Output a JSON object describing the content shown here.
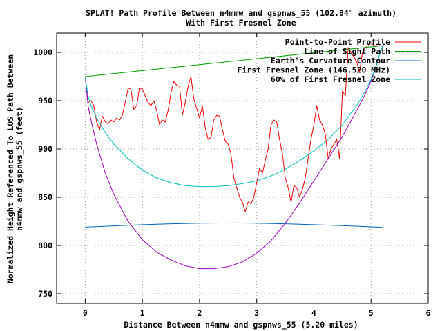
{
  "chart_data": {
    "type": "line",
    "title": "SPLAT! Path Profile Between n4mmw and gspnws_55 (102.84° azimuth)",
    "subtitle": "With First Fresnel Zone",
    "xlabel": "Distance Between n4mmw and gspnws_55 (5.20 miles)",
    "ylabel_lines": [
      "Normalized Height Referenced To LOS Path Between",
      "n4mmw and gspnws_55 (feet)"
    ],
    "xlim": [
      -0.5,
      6
    ],
    "ylim": [
      740,
      1020
    ],
    "xticks": [
      0,
      1,
      2,
      3,
      4,
      5,
      6
    ],
    "yticks": [
      750,
      800,
      850,
      900,
      950,
      1000
    ],
    "grid": true,
    "legend_position": "top-right",
    "series": [
      {
        "name": "Point-to-Point Profile",
        "color": "#ff0000",
        "x": [
          0,
          0.05,
          0.1,
          0.15,
          0.2,
          0.25,
          0.3,
          0.35,
          0.4,
          0.45,
          0.5,
          0.55,
          0.6,
          0.65,
          0.7,
          0.75,
          0.8,
          0.85,
          0.9,
          0.95,
          1.0,
          1.05,
          1.1,
          1.15,
          1.2,
          1.25,
          1.3,
          1.35,
          1.4,
          1.45,
          1.5,
          1.55,
          1.6,
          1.65,
          1.7,
          1.75,
          1.8,
          1.85,
          1.9,
          1.95,
          2.0,
          2.05,
          2.1,
          2.15,
          2.2,
          2.25,
          2.3,
          2.35,
          2.4,
          2.45,
          2.5,
          2.55,
          2.6,
          2.65,
          2.7,
          2.75,
          2.8,
          2.85,
          2.9,
          2.95,
          3.0,
          3.05,
          3.1,
          3.15,
          3.2,
          3.25,
          3.3,
          3.35,
          3.4,
          3.45,
          3.5,
          3.55,
          3.6,
          3.65,
          3.7,
          3.75,
          3.8,
          3.85,
          3.9,
          3.95,
          4.0,
          4.05,
          4.1,
          4.15,
          4.2,
          4.25,
          4.3,
          4.35,
          4.4,
          4.45,
          4.5,
          4.55,
          4.6,
          4.65,
          4.7,
          4.75,
          4.8,
          4.85,
          4.9,
          4.95,
          5.0,
          5.05,
          5.1,
          5.15,
          5.2
        ],
        "y": [
          975,
          948,
          950,
          945,
          928,
          920,
          934,
          928,
          926,
          930,
          928,
          932,
          930,
          935,
          948,
          963,
          962,
          941,
          945,
          963,
          962,
          955,
          948,
          945,
          950,
          940,
          925,
          930,
          928,
          940,
          958,
          970,
          966,
          965,
          935,
          948,
          965,
          975,
          952,
          942,
          932,
          945,
          922,
          910,
          912,
          930,
          935,
          934,
          920,
          908,
          905,
          895,
          870,
          860,
          850,
          845,
          835,
          845,
          843,
          850,
          865,
          880,
          875,
          888,
          900,
          925,
          930,
          928,
          910,
          895,
          870,
          860,
          845,
          862,
          860,
          850,
          858,
          870,
          890,
          910,
          925,
          945,
          930,
          925,
          915,
          890,
          900,
          905,
          910,
          890,
          960,
          955,
          1005,
          1000,
          995,
          990,
          980,
          1000,
          1005,
          1007,
          1010,
          1007,
          1007,
          1007,
          1007
        ]
      },
      {
        "name": "Line of Sight Path",
        "color": "#00a000",
        "x": [
          0,
          5.2
        ],
        "y": [
          975,
          1007
        ]
      },
      {
        "name": "Earth's Curvature Contour",
        "color": "#0060c0",
        "x": [
          0,
          0.5,
          1.0,
          1.5,
          2.0,
          2.6,
          3.0,
          3.5,
          4.0,
          4.5,
          5.0,
          5.2
        ],
        "y": [
          819,
          820.3,
          821.5,
          822.4,
          823,
          823.3,
          823,
          822.4,
          821.5,
          820.5,
          819.3,
          818.8
        ]
      },
      {
        "name": "First Fresnel Zone (146.520 MHz)",
        "color": "#a000c0",
        "x": [
          0,
          0.05,
          0.1,
          0.2,
          0.35,
          0.5,
          0.75,
          1.0,
          1.25,
          1.5,
          1.75,
          2.0,
          2.25,
          2.5,
          2.75,
          3.0,
          3.25,
          3.5,
          3.75,
          4.0,
          4.25,
          4.5,
          4.75,
          4.9,
          5.0,
          5.1,
          5.15,
          5.2
        ],
        "y": [
          975,
          945,
          930,
          905,
          875,
          853,
          825,
          806,
          793,
          785,
          779,
          776,
          776,
          778,
          783,
          792,
          805,
          823,
          844,
          867,
          890,
          913,
          940,
          957,
          970,
          988,
          998,
          1007
        ]
      },
      {
        "name": "60% of First Fresnel Zone",
        "color": "#00c0c0",
        "x": [
          0,
          0.05,
          0.1,
          0.2,
          0.35,
          0.5,
          0.75,
          1.0,
          1.25,
          1.5,
          1.75,
          2.0,
          2.25,
          2.5,
          2.75,
          3.0,
          3.25,
          3.5,
          3.75,
          4.0,
          4.25,
          4.5,
          4.75,
          4.9,
          5.0,
          5.1,
          5.15,
          5.2
        ],
        "y": [
          975,
          955,
          945,
          932,
          917,
          905,
          890,
          878,
          870,
          865,
          862,
          861,
          861,
          862,
          864,
          867,
          872,
          879,
          888,
          898,
          910,
          925,
          945,
          960,
          972,
          988,
          998,
          1007
        ]
      }
    ]
  }
}
